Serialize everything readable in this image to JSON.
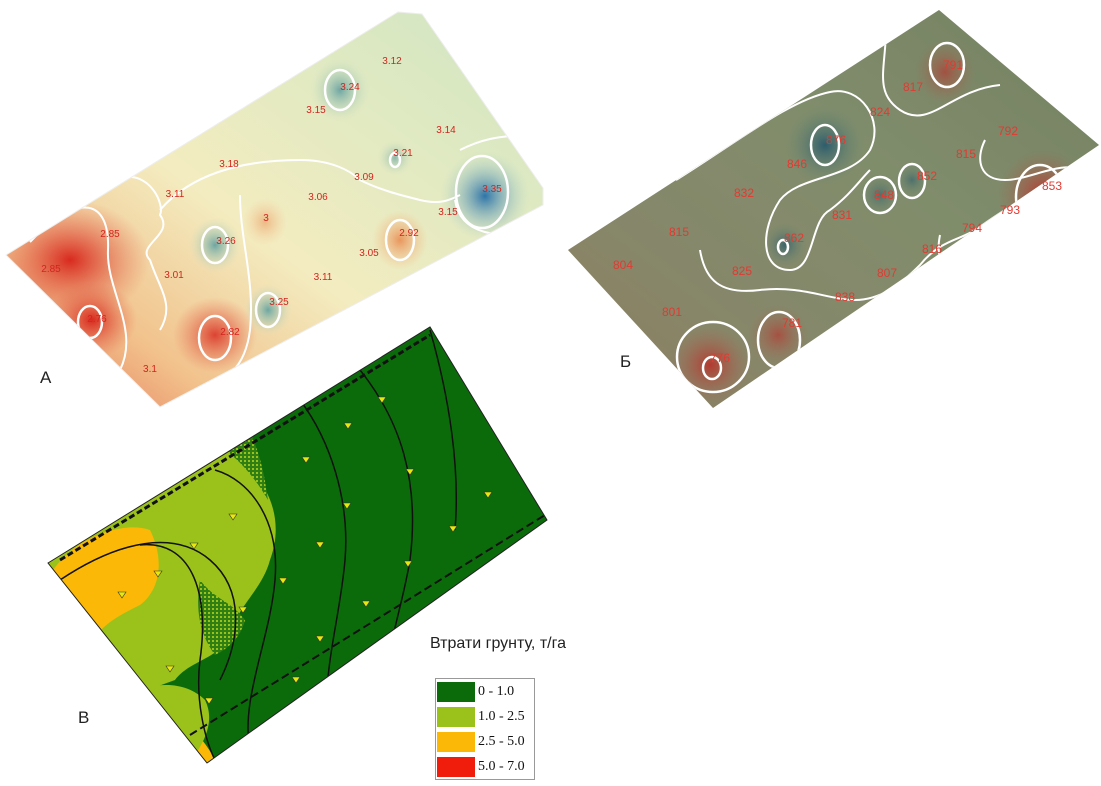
{
  "panels": {
    "a": {
      "label": "А",
      "values": [
        "3.12",
        "3.24",
        "3.15",
        "3.14",
        "3.21",
        "3.18",
        "3.09",
        "3.35",
        "3.11",
        "3.06",
        "3",
        "3.15",
        "2.85",
        "3.26",
        "2.92",
        "2.85",
        "3.01",
        "3.05",
        "3.11",
        "3.25",
        "2.76",
        "2.82",
        "3.1"
      ]
    },
    "b": {
      "label": "Б",
      "values": [
        "791",
        "817",
        "824",
        "792",
        "876",
        "846",
        "815",
        "852",
        "832",
        "848",
        "853",
        "831",
        "793",
        "815",
        "862",
        "794",
        "804",
        "825",
        "816",
        "807",
        "838",
        "801",
        "781",
        "776"
      ]
    },
    "c": {
      "label": "В",
      "legend": {
        "title": "Втрати грунту, т/га",
        "items": [
          {
            "label": "0 - 1.0",
            "color": "#0b6b0b"
          },
          {
            "label": "1.0 - 2.5",
            "color": "#9bc21a"
          },
          {
            "label": "2.5 - 5.0",
            "color": "#fbb806"
          },
          {
            "label": "5.0 - 7.0",
            "color": "#f01c0c"
          }
        ]
      }
    }
  }
}
